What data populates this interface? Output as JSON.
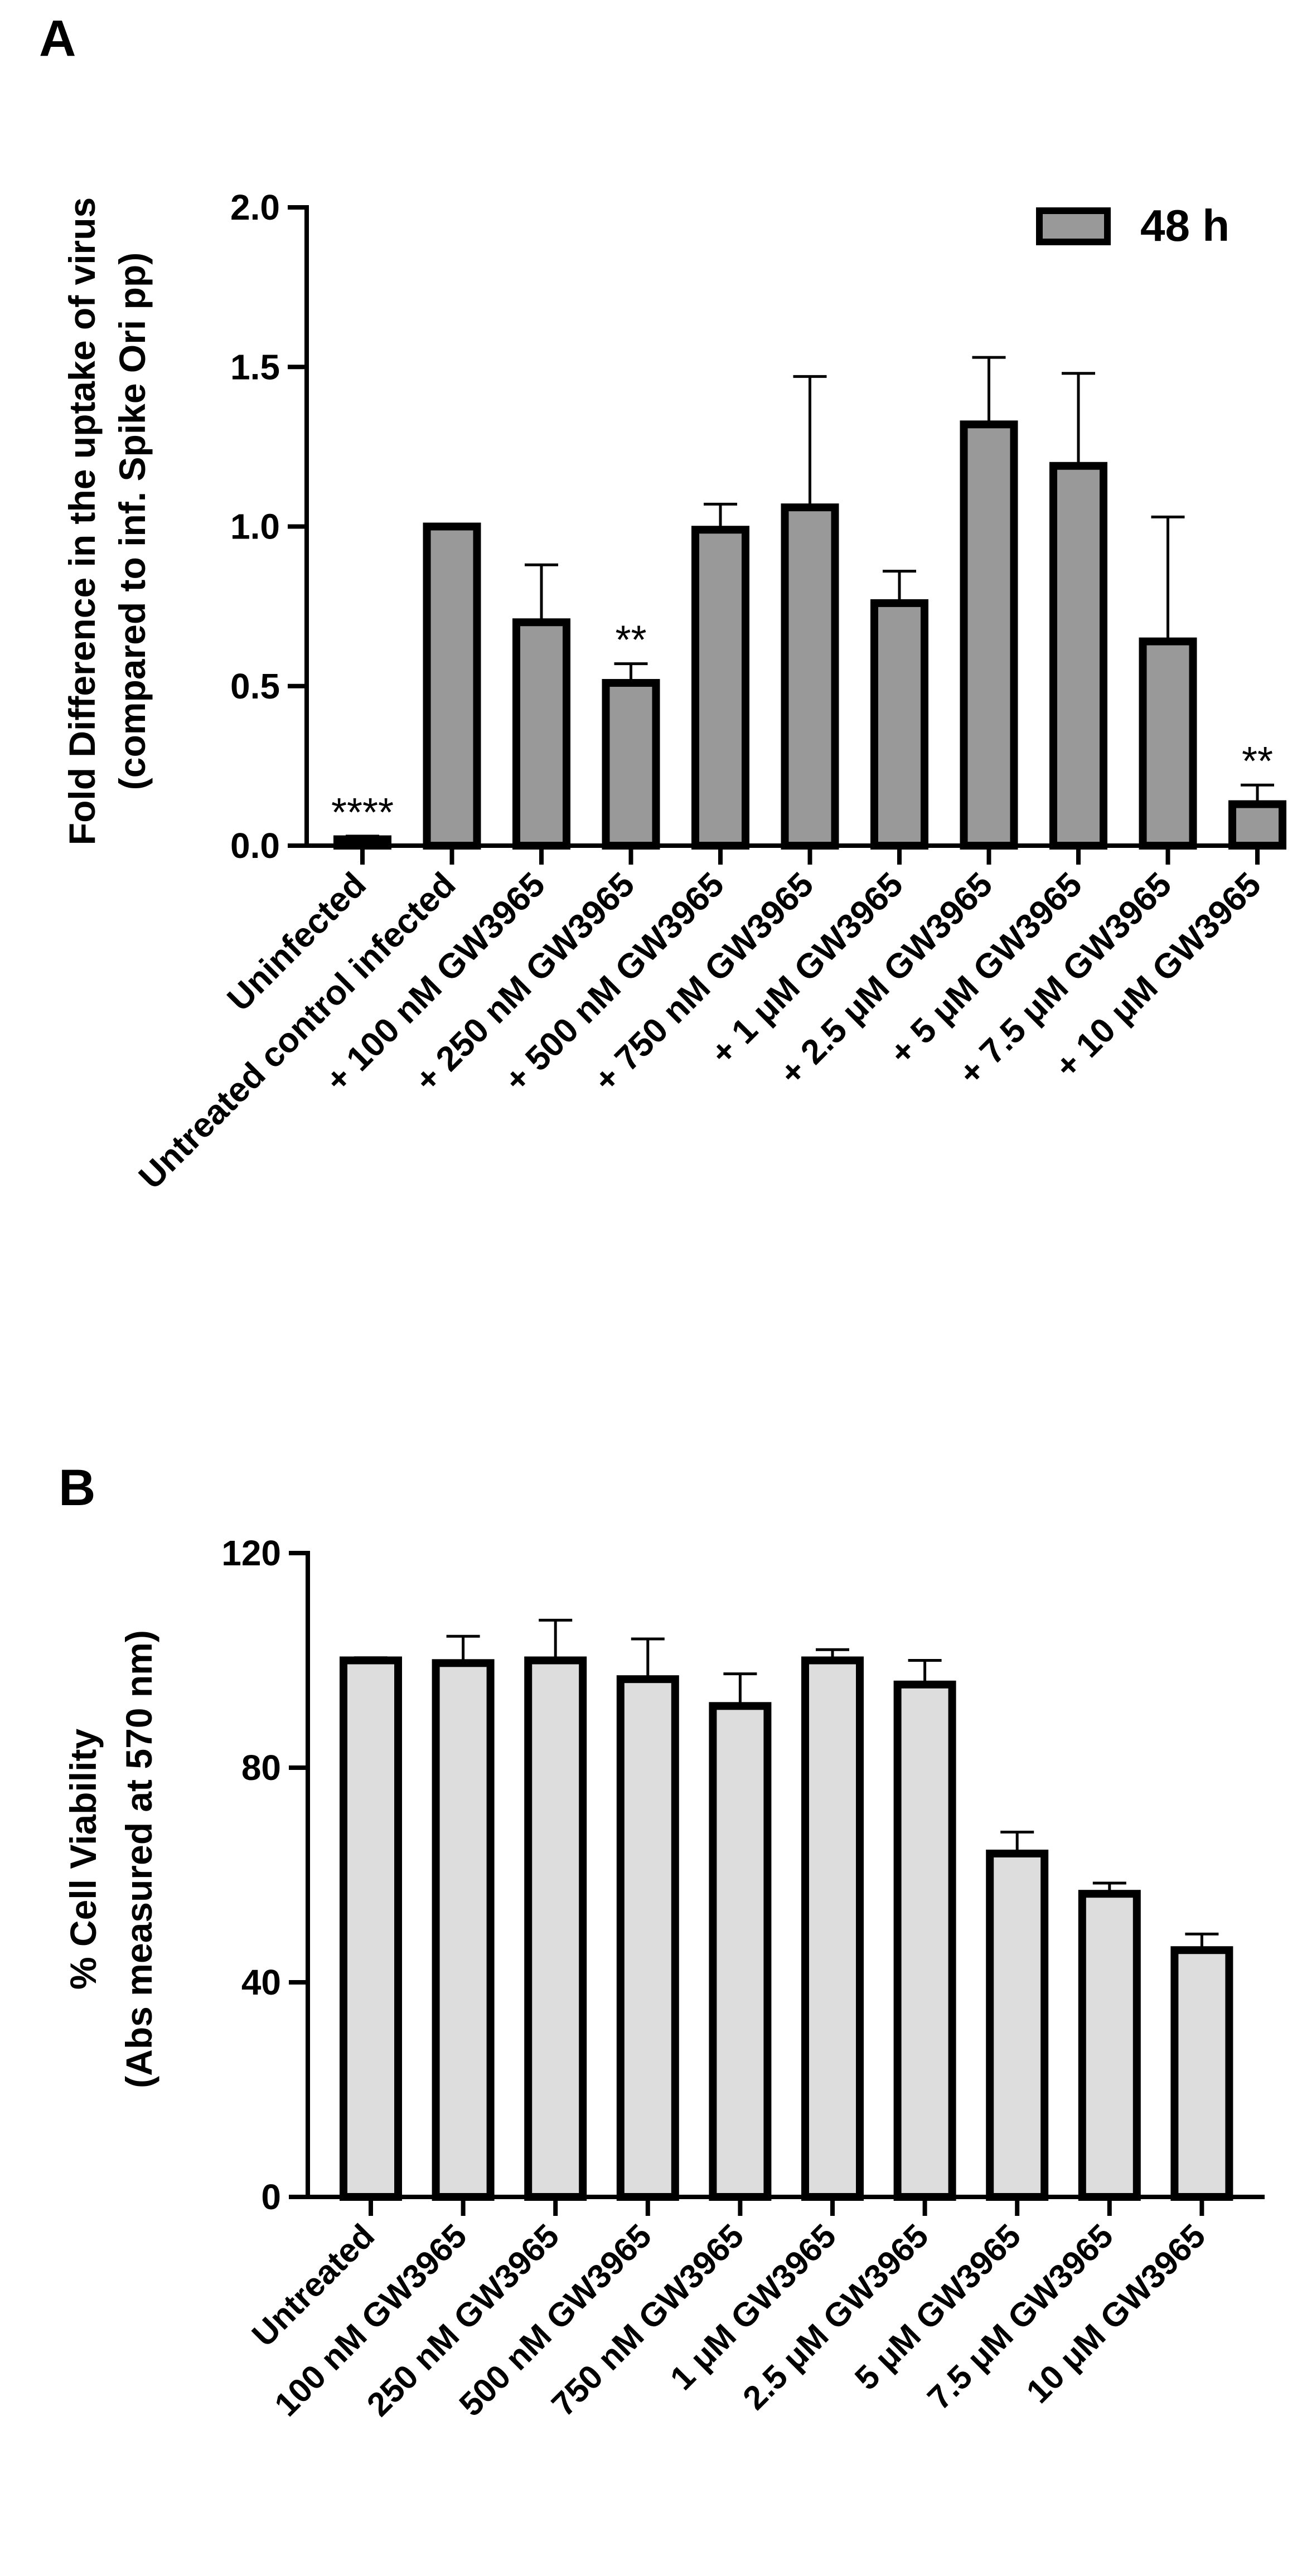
{
  "chart_data": [
    {
      "panel_label": "A",
      "type": "bar",
      "ylabel_lines": [
        "Fold Difference in the uptake of virus",
        "(compared to inf. Spike Ori pp)"
      ],
      "xlabel": "",
      "ylim": [
        0,
        2.0
      ],
      "yticks": [
        "0.0",
        "0.5",
        "1.0",
        "1.5",
        "2.0"
      ],
      "ytick_values": [
        0,
        0.5,
        1.0,
        1.5,
        2.0
      ],
      "bar_color": "#999999",
      "legend": {
        "label": "48 h",
        "position": "top-right"
      },
      "categories": [
        "Uninfected",
        "Untreated control infected",
        "+ 100 nM GW3965",
        "+ 250 nM GW3965",
        "+ 500 nM GW3965",
        "+ 750 nM GW3965",
        "+ 1 μM GW3965",
        "+ 2.5 μM GW3965",
        "+ 5 μM GW3965",
        "+ 7.5 μM GW3965",
        "+ 10 μM GW3965"
      ],
      "series": [
        {
          "name": "48 h",
          "values": [
            0.02,
            1.0,
            0.7,
            0.51,
            0.99,
            1.06,
            0.76,
            1.32,
            1.19,
            0.64,
            0.13
          ],
          "errors": [
            0.01,
            0.0,
            0.18,
            0.06,
            0.08,
            0.41,
            0.1,
            0.21,
            0.29,
            0.39,
            0.06
          ]
        }
      ],
      "annotations": [
        "****",
        "",
        "",
        "**",
        "",
        "",
        "",
        "",
        "",
        "",
        "**"
      ]
    },
    {
      "panel_label": "B",
      "type": "bar",
      "ylabel_lines": [
        "% Cell Viability",
        "(Abs measured at 570 nm)"
      ],
      "xlabel": "",
      "ylim": [
        0,
        120
      ],
      "yticks": [
        "0",
        "40",
        "80",
        "120"
      ],
      "ytick_values": [
        0,
        40,
        80,
        120
      ],
      "bar_color": "#dddddd",
      "categories": [
        "Untreated",
        "100 nM GW3965",
        "250 nM GW3965",
        "500 nM GW3965",
        "750 nM GW3965",
        "1 μM GW3965",
        "2.5 μM GW3965",
        "5 μM GW3965",
        "7.5 μM GW3965",
        "10 μM GW3965"
      ],
      "series": [
        {
          "name": "viability",
          "values": [
            100,
            99.5,
            100,
            96.5,
            91.5,
            100,
            95.5,
            64,
            56.5,
            46
          ],
          "errors": [
            0.5,
            5,
            7.5,
            7.5,
            6,
            2,
            4.5,
            4,
            2,
            3
          ]
        }
      ]
    }
  ]
}
